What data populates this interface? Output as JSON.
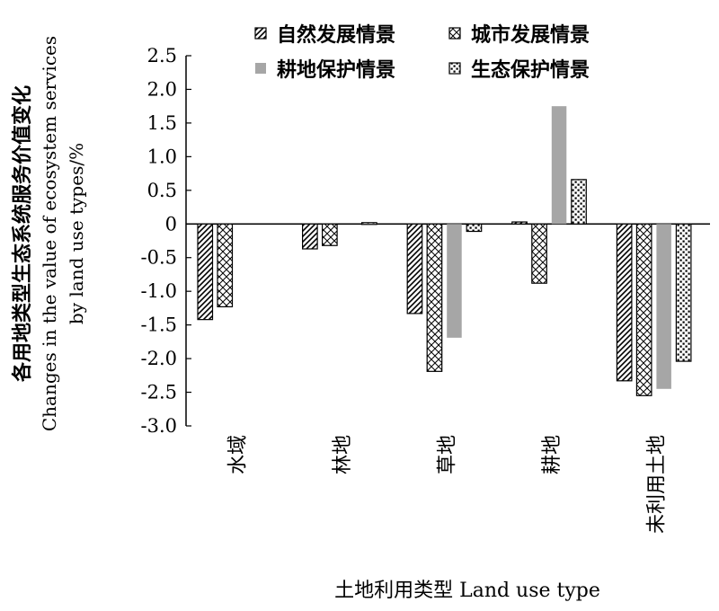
{
  "chart_data": {
    "type": "bar",
    "title": "",
    "xlabel": "土地利用类型 Land use type",
    "ylabel": [
      "各用地类型生态系统服务价值变化",
      "Changes in the value of ecosystem services",
      "by land use types/%"
    ],
    "ylim": [
      -3.0,
      2.5
    ],
    "yticks": [
      "2.5",
      "2.0",
      "1.5",
      "1.0",
      "0.5",
      "0",
      "-0.5",
      "-1.0",
      "-1.5",
      "-2.0",
      "-2.5",
      "-3.0"
    ],
    "categories": [
      "水域",
      "林地",
      "草地",
      "耕地",
      "未利用土地"
    ],
    "series": [
      {
        "name": "自然发展情景",
        "values": [
          -1.42,
          -0.37,
          -1.33,
          0.03,
          -2.33
        ]
      },
      {
        "name": "城市发展情景",
        "values": [
          -1.23,
          -0.32,
          -2.19,
          -0.88,
          -2.55
        ]
      },
      {
        "name": "耕地保护情景",
        "values": [
          0.0,
          0.0,
          -1.69,
          1.75,
          -2.45
        ]
      },
      {
        "name": "生态保护情景",
        "values": [
          0.0,
          0.02,
          -0.11,
          0.66,
          -2.04
        ]
      }
    ],
    "grid": false,
    "legend_position": "top"
  }
}
